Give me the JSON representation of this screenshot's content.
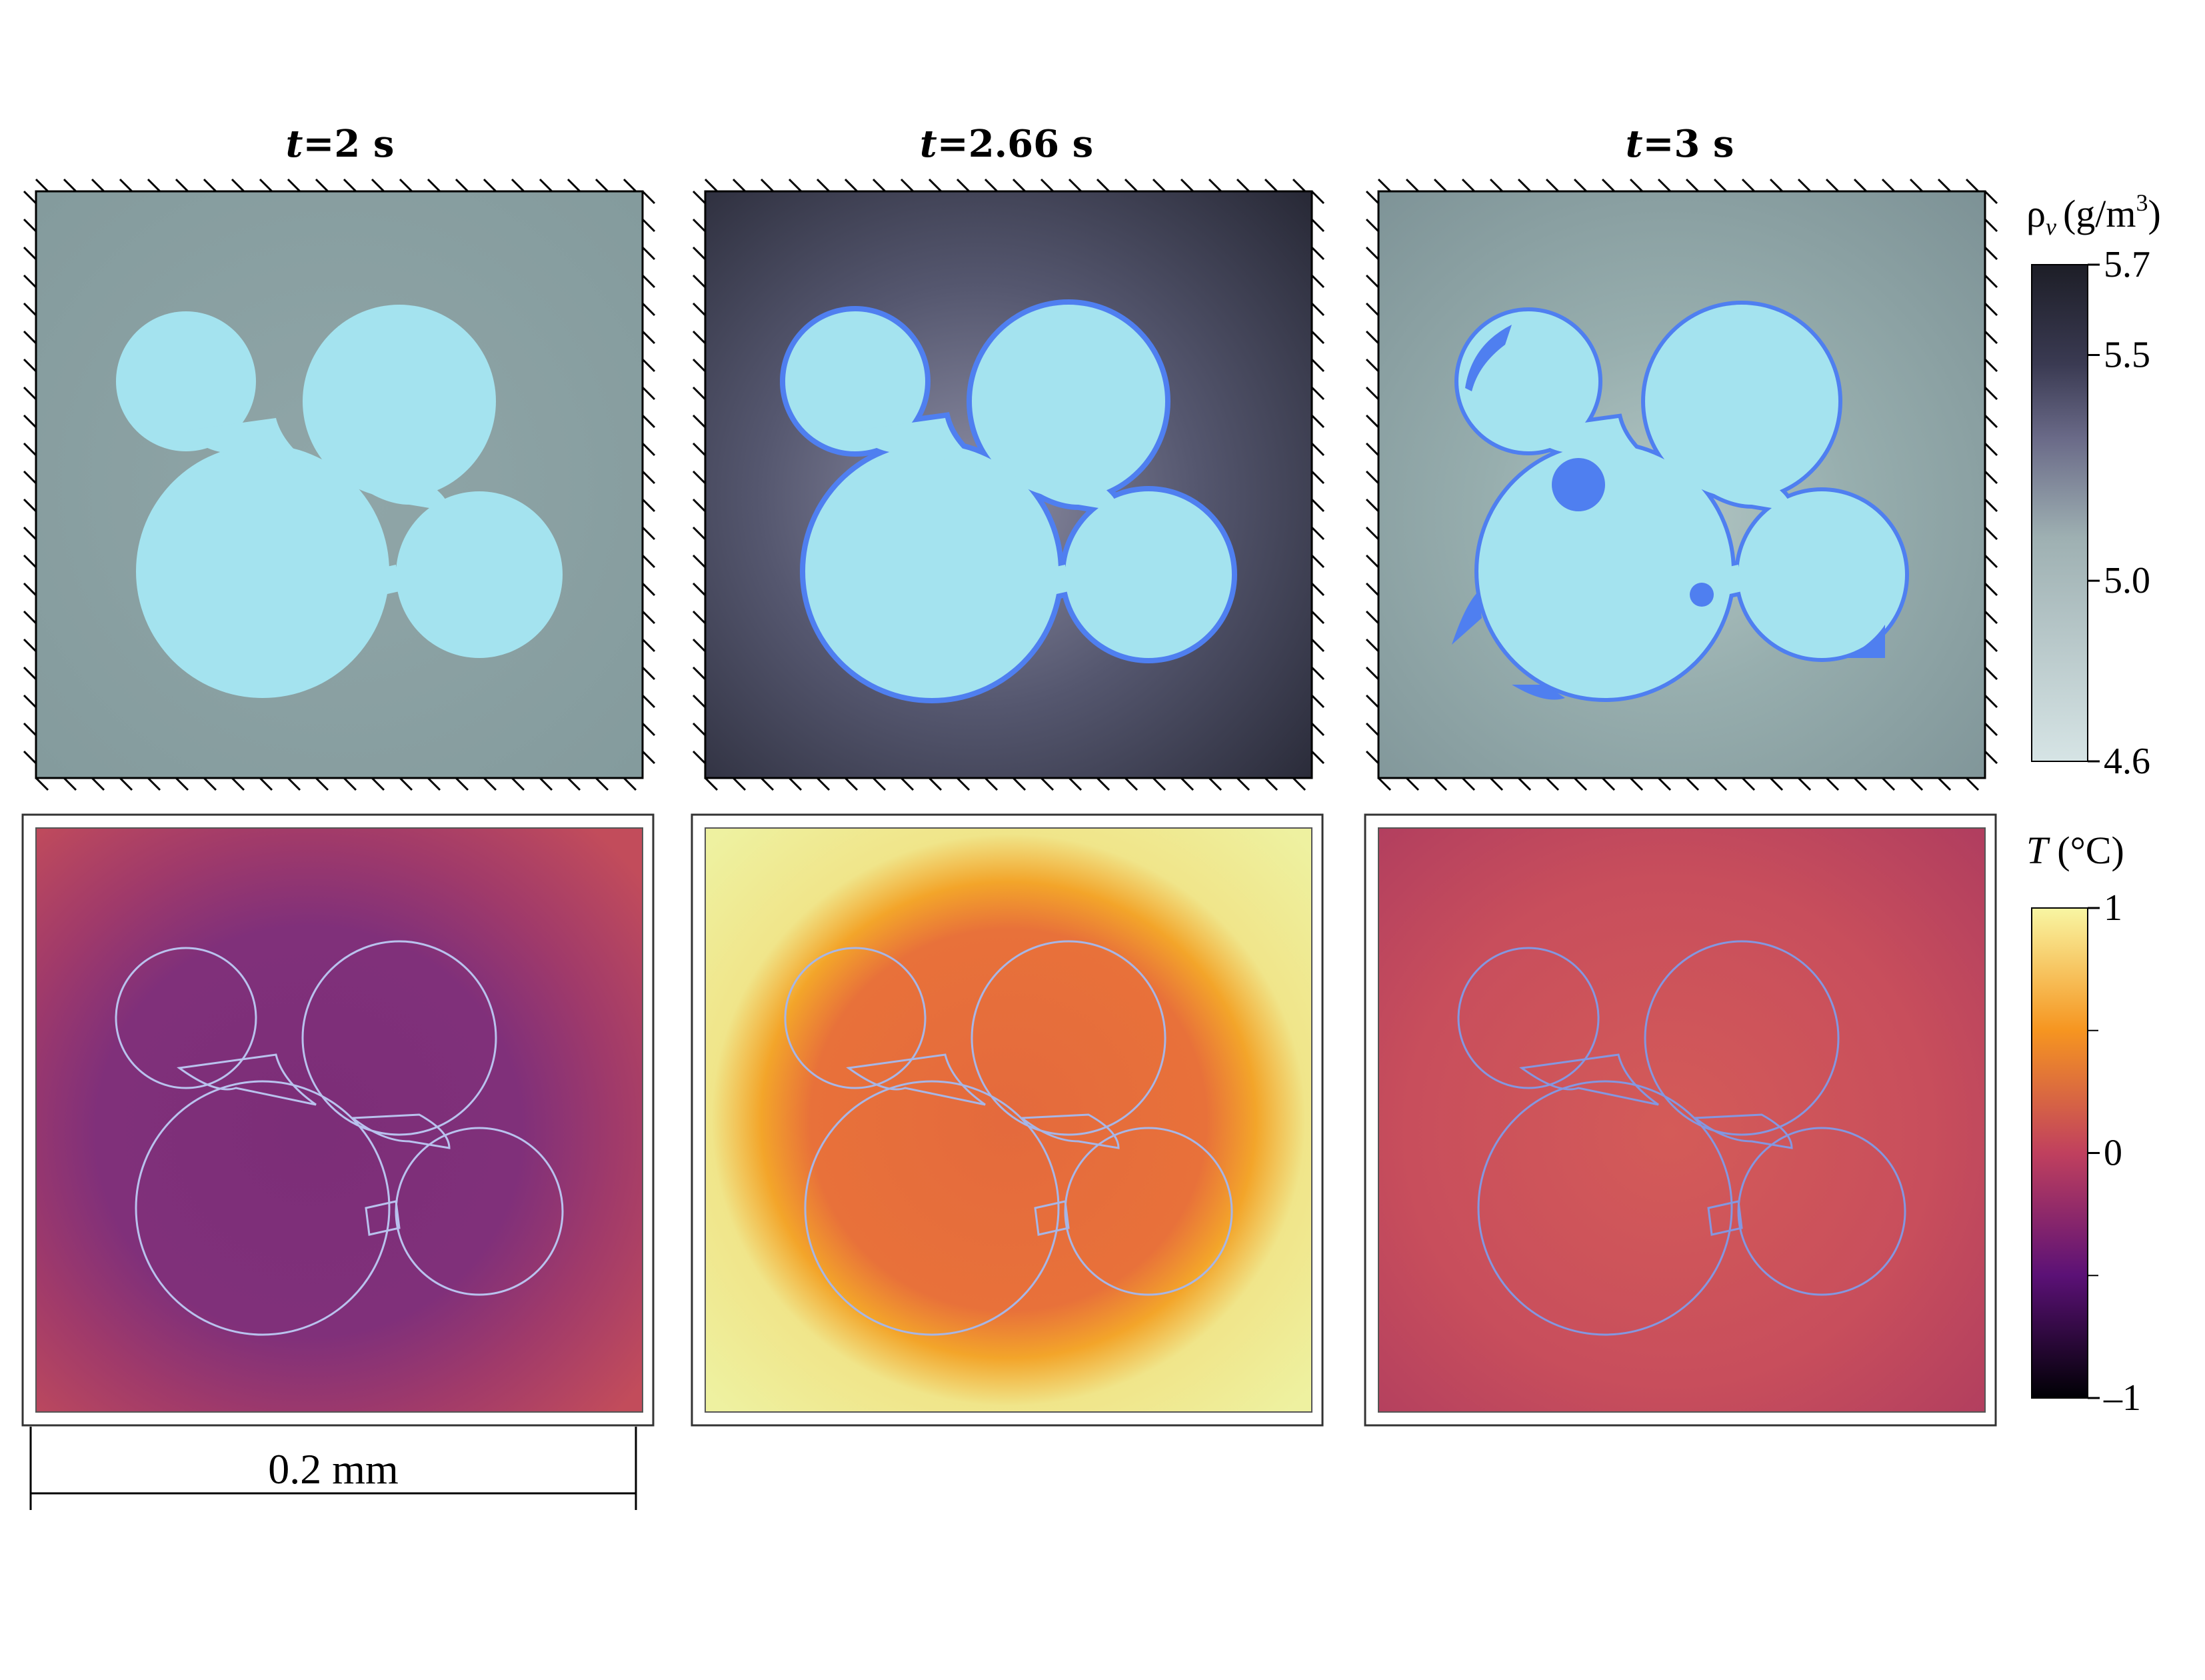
{
  "panels": {
    "titles": [
      {
        "var": "t",
        "rest": "=2 s"
      },
      {
        "var": "t",
        "rest": "=2.66 s"
      },
      {
        "var": "t",
        "rest": "=3 s"
      }
    ]
  },
  "top_row": {
    "field": "vapor-density",
    "background_colors": [
      "#8a9fa1",
      "#3e3f57",
      "#889da0"
    ],
    "particle_color": "#a4e3ef",
    "ice_layer_color": "#4f7ff0"
  },
  "bottom_row": {
    "field": "temperature",
    "background_colors": [
      "#bf4a5c",
      "#ecef9e",
      "#b6435e"
    ],
    "interior_colors": [
      "#7e2d76",
      "#e56a3c",
      "#d15a5a"
    ],
    "halo_color": "#f2a522",
    "outline_color": "#a7b6e6"
  },
  "colorbar_top": {
    "label_symbol": "ρ",
    "label_sub": "v",
    "label_unit": "(g/m",
    "label_sup": "3",
    "label_close": ")",
    "ticks": [
      "5.7",
      "5.5",
      "5.0",
      "4.6"
    ],
    "tick_values": [
      5.7,
      5.5,
      5.0,
      4.6
    ],
    "range": [
      4.6,
      5.7
    ],
    "colors": [
      "#1d1e27",
      "#434363",
      "#6e6d8c",
      "#a5b6b6",
      "#d6e4e5"
    ]
  },
  "colorbar_bottom": {
    "label_symbol": "T",
    "label_unit": "(°C)",
    "ticks": [
      "1",
      "0",
      "–1"
    ],
    "tick_values": [
      1,
      0,
      -1
    ],
    "range": [
      -1,
      1
    ],
    "colors": [
      "#f8f6a3",
      "#f69520",
      "#c0405e",
      "#5b1176",
      "#000004"
    ]
  },
  "scale_bar": {
    "label": "0.2 mm"
  }
}
